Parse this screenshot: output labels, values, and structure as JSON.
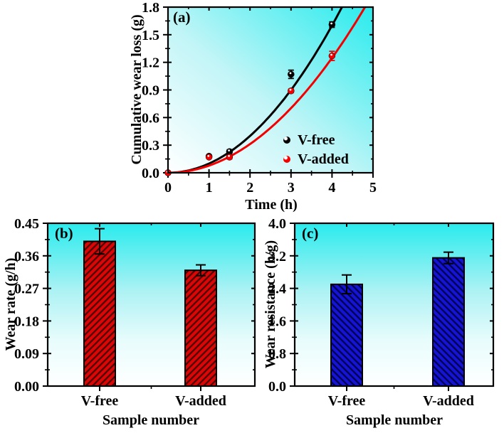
{
  "figure": {
    "background": "#ffffff"
  },
  "panels": {
    "a": {
      "label": "(a)"
    },
    "b": {
      "label": "(b)"
    },
    "c": {
      "label": "(c)"
    }
  },
  "colors": {
    "plot_cyan": "#29ebed",
    "plot_white": "#ffffff",
    "frame": "#000000",
    "error_bar": "#000000"
  },
  "chart_data": [
    {
      "id": "a",
      "type": "scatter",
      "title": "",
      "xlabel": "Time (h)",
      "ylabel": "Cumulative wear loss (g)",
      "xlim": [
        0,
        5
      ],
      "ylim": [
        0,
        1.8
      ],
      "xticks": [
        "0",
        "1",
        "2",
        "3",
        "4",
        "5"
      ],
      "yticks": [
        "0.0",
        "0.3",
        "0.6",
        "0.9",
        "1.2",
        "1.5",
        "1.8"
      ],
      "x_minor_step": 0.5,
      "y_minor_step": 0.15,
      "grid": false,
      "legend_position": "inside lower right",
      "series": [
        {
          "name": "V-free",
          "color": "#000000",
          "x": [
            0,
            1,
            1.5,
            3,
            4
          ],
          "y": [
            0,
            0.18,
            0.23,
            1.07,
            1.61
          ],
          "yerr": [
            0,
            0.01,
            0.02,
            0.045,
            0.03
          ],
          "fit_curve": {
            "type": "quadratic",
            "coefficient": 0.1,
            "equation": "y = 0.100x^2"
          }
        },
        {
          "name": "V-added",
          "color": "#f40000",
          "x": [
            0,
            1,
            1.5,
            3,
            4
          ],
          "y": [
            0,
            0.17,
            0.17,
            0.89,
            1.27
          ],
          "yerr": [
            0,
            0.01,
            0.02,
            0.02,
            0.05
          ],
          "fit_curve": {
            "type": "quadratic",
            "coefficient": 0.078,
            "equation": "y = 0.078x^2"
          }
        }
      ]
    },
    {
      "id": "b",
      "type": "bar",
      "title": "",
      "xlabel": "Sample number",
      "ylabel": "Wear rate (g/h)",
      "categories": [
        "V-free",
        "V-added"
      ],
      "values": [
        0.4,
        0.32
      ],
      "errors": [
        0.035,
        0.015
      ],
      "ylim": [
        0,
        0.45
      ],
      "yticks": [
        "0.00",
        "0.09",
        "0.18",
        "0.27",
        "0.36",
        "0.45"
      ],
      "y_minor_step": 0.045,
      "grid": false,
      "bar_color": "#dc0606",
      "hatch_color": "#4c0000",
      "hatch_direction": "/"
    },
    {
      "id": "c",
      "type": "bar",
      "title": "",
      "xlabel": "Sample number",
      "ylabel": "Wear resistance (h/g)",
      "categories": [
        "V-free",
        "V-added"
      ],
      "values": [
        2.5,
        3.15
      ],
      "errors": [
        0.23,
        0.14
      ],
      "ylim": [
        0,
        4.0
      ],
      "yticks": [
        "0.0",
        "0.8",
        "1.6",
        "2.4",
        "3.2",
        "4.0"
      ],
      "y_minor_step": 0.4,
      "grid": false,
      "bar_color": "#1414d2",
      "hatch_color": "#000052",
      "hatch_direction": "\\"
    }
  ]
}
